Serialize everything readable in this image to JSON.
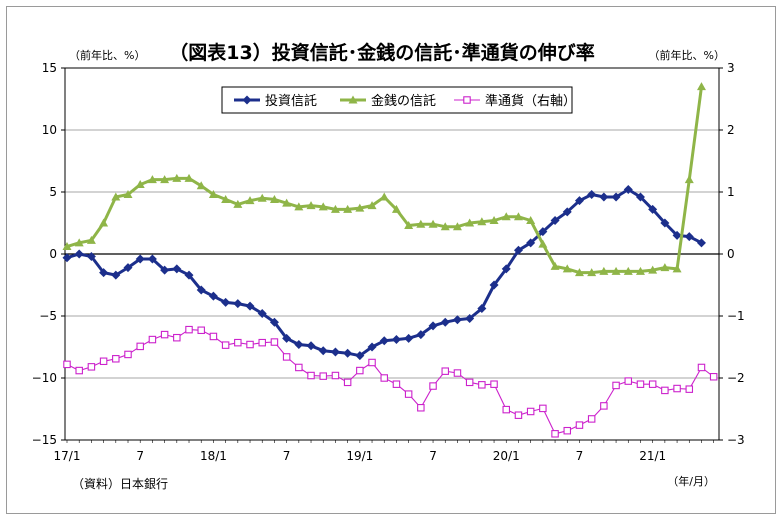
{
  "chart_data": {
    "type": "line",
    "title": "（図表13）投資信託･金銭の信託･準通貨の伸び率",
    "ylabel_left": "（前年比、%）",
    "ylabel_right": "（前年比、%）",
    "source_note": "（資料）日本銀行",
    "xunit": "（年/月）",
    "x_tick_labels": [
      "17/1",
      "7",
      "18/1",
      "7",
      "19/1",
      "7",
      "20/1",
      "7",
      "21/1"
    ],
    "x_tick_index": [
      0,
      6,
      12,
      18,
      24,
      30,
      36,
      42,
      48
    ],
    "y_left": {
      "ticks": [
        15,
        10,
        5,
        0,
        -5,
        -10,
        -15
      ],
      "tick_labels": [
        "15",
        "10",
        "5",
        "0",
        "−5",
        "−10",
        "−15"
      ],
      "ylim": [
        -15,
        15
      ]
    },
    "y_right": {
      "ticks": [
        3,
        2,
        1,
        0,
        -1,
        -2,
        -3
      ],
      "tick_labels": [
        "3",
        "2",
        "1",
        "0",
        "−1",
        "−2",
        "−3"
      ],
      "ylim": [
        -3,
        3
      ]
    },
    "legend_position": "top-center",
    "grid": true,
    "series": [
      {
        "name": "投資信託",
        "axis": "left",
        "color": "#1c2f8c",
        "marker": "diamond",
        "values": [
          -0.3,
          0,
          -0.2,
          -1.5,
          -1.7,
          -1.1,
          -0.4,
          -0.4,
          -1.3,
          -1.2,
          -1.7,
          -2.9,
          -3.4,
          -3.9,
          -4.0,
          -4.2,
          -4.8,
          -5.5,
          -6.8,
          -7.3,
          -7.4,
          -7.8,
          -7.9,
          -8.0,
          -8.2,
          -7.5,
          -7.0,
          -6.9,
          -6.8,
          -6.5,
          -5.8,
          -5.5,
          -5.3,
          -5.2,
          -4.4,
          -2.5,
          -1.2,
          0.3,
          0.9,
          1.8,
          2.7,
          3.4,
          4.3,
          4.8,
          4.6,
          4.6,
          5.2,
          4.6,
          3.6,
          2.5,
          1.5,
          1.4,
          0.9
        ]
      },
      {
        "name": "金銭の信託",
        "axis": "left",
        "color": "#8fb548",
        "marker": "triangle",
        "values": [
          0.6,
          0.9,
          1.1,
          2.5,
          4.6,
          4.8,
          5.6,
          6.0,
          6.0,
          6.1,
          6.1,
          5.5,
          4.8,
          4.4,
          4.0,
          4.3,
          4.5,
          4.4,
          4.1,
          3.8,
          3.9,
          3.8,
          3.6,
          3.6,
          3.7,
          3.9,
          4.6,
          3.6,
          2.3,
          2.4,
          2.4,
          2.2,
          2.2,
          2.5,
          2.6,
          2.7,
          3.0,
          3.0,
          2.7,
          0.8,
          -1.0,
          -1.2,
          -1.5,
          -1.5,
          -1.4,
          -1.4,
          -1.4,
          -1.4,
          -1.3,
          -1.1,
          -1.2,
          6.0,
          13.5
        ]
      },
      {
        "name": "準通貨（右軸）",
        "axis": "right",
        "color": "#cc22cc",
        "marker": "square",
        "values": [
          -1.78,
          -1.88,
          -1.82,
          -1.73,
          -1.69,
          -1.62,
          -1.49,
          -1.38,
          -1.3,
          -1.35,
          -1.22,
          -1.23,
          -1.33,
          -1.47,
          -1.43,
          -1.46,
          -1.43,
          -1.42,
          -1.66,
          -1.83,
          -1.96,
          -1.97,
          -1.96,
          -2.07,
          -1.88,
          -1.75,
          -2.0,
          -2.1,
          -2.26,
          -2.48,
          -2.13,
          -1.89,
          -1.92,
          -2.07,
          -2.11,
          -2.1,
          -2.51,
          -2.6,
          -2.54,
          -2.49,
          -2.9,
          -2.85,
          -2.76,
          -2.66,
          -2.45,
          -2.12,
          -2.05,
          -2.1,
          -2.1,
          -2.2,
          -2.17,
          -2.18,
          -1.83,
          -1.98
        ]
      }
    ]
  }
}
